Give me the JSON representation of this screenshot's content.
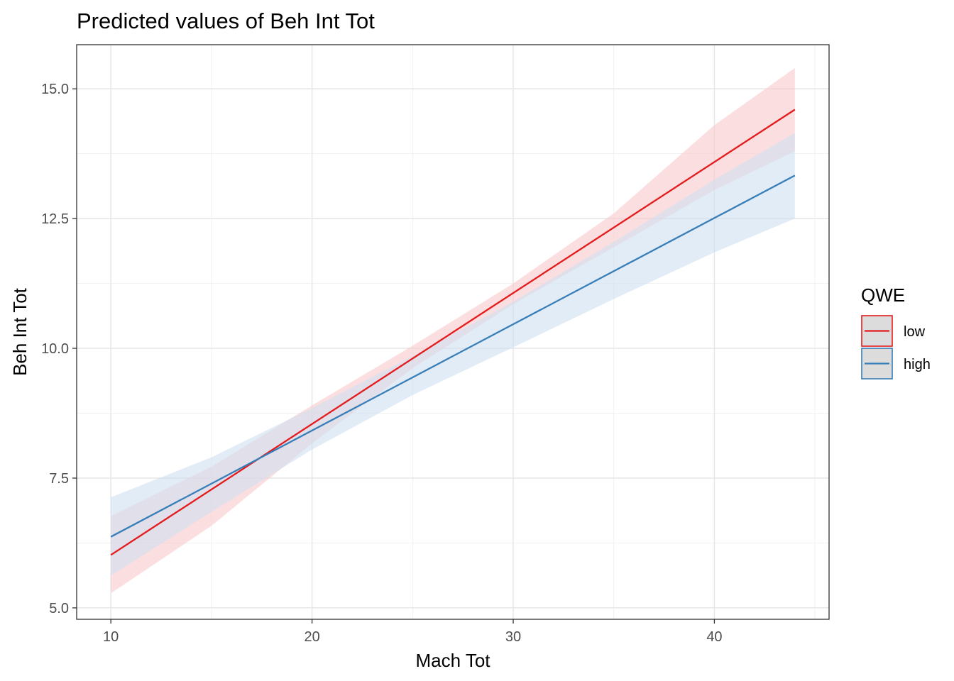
{
  "chart_data": {
    "type": "line",
    "title": "Predicted values of Beh Int Tot",
    "xlabel": "Mach Tot",
    "ylabel": "Beh Int Tot",
    "xlim": [
      8.3,
      45.7
    ],
    "ylim": [
      4.78,
      15.85
    ],
    "xticks": [
      10,
      20,
      30,
      40
    ],
    "xtick_labels": [
      "10",
      "20",
      "30",
      "40"
    ],
    "yticks": [
      5.0,
      7.5,
      10.0,
      12.5,
      15.0
    ],
    "ytick_labels": [
      "5.0",
      "7.5",
      "10.0",
      "12.5",
      "15.0"
    ],
    "x_minor": [
      15,
      25,
      35,
      45
    ],
    "y_minor": [
      6.25,
      8.75,
      11.25,
      13.75
    ],
    "grid": true,
    "legend": {
      "title": "QWE",
      "position": "right"
    },
    "series": [
      {
        "name": "low",
        "color": "#e41a1c",
        "fill": "#f8c9cb",
        "x": [
          10,
          44
        ],
        "y": [
          6.02,
          14.6
        ],
        "ribbon": {
          "x": [
            10,
            15,
            20,
            25,
            30,
            35,
            40,
            44
          ],
          "lower": [
            5.28,
            6.58,
            8.17,
            9.62,
            10.85,
            11.95,
            13.05,
            13.8
          ],
          "upper": [
            6.77,
            7.72,
            8.9,
            10.05,
            11.25,
            12.6,
            14.3,
            15.4
          ]
        }
      },
      {
        "name": "high",
        "color": "#377eb8",
        "fill": "#cfe0f0",
        "x": [
          10,
          44
        ],
        "y": [
          6.37,
          13.33
        ],
        "ribbon": {
          "x": [
            10,
            15,
            20,
            25,
            30,
            35,
            40,
            44
          ],
          "lower": [
            5.62,
            6.85,
            8.05,
            9.1,
            10.02,
            10.95,
            11.85,
            12.5
          ],
          "upper": [
            7.13,
            7.9,
            8.85,
            9.85,
            10.9,
            12.05,
            13.25,
            14.15
          ]
        }
      }
    ]
  }
}
